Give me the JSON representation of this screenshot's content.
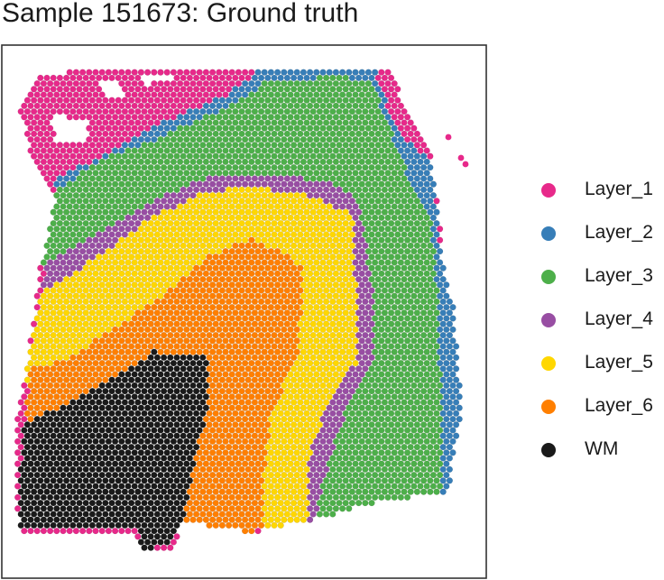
{
  "chart_data": {
    "type": "scatter",
    "title": "Sample 151673: Ground truth",
    "xlabel": "",
    "ylabel": "",
    "grid": false,
    "legend_placement": "right",
    "series": [
      {
        "name": "Layer_1",
        "color": "#E7298A"
      },
      {
        "name": "Layer_2",
        "color": "#377EB8"
      },
      {
        "name": "Layer_3",
        "color": "#4DAF4A"
      },
      {
        "name": "Layer_4",
        "color": "#984EA3"
      },
      {
        "name": "Layer_5",
        "color": "#FFD700"
      },
      {
        "name": "Layer_6",
        "color": "#FF7F00"
      },
      {
        "name": "WM",
        "color": "#1A1A1A"
      }
    ]
  }
}
